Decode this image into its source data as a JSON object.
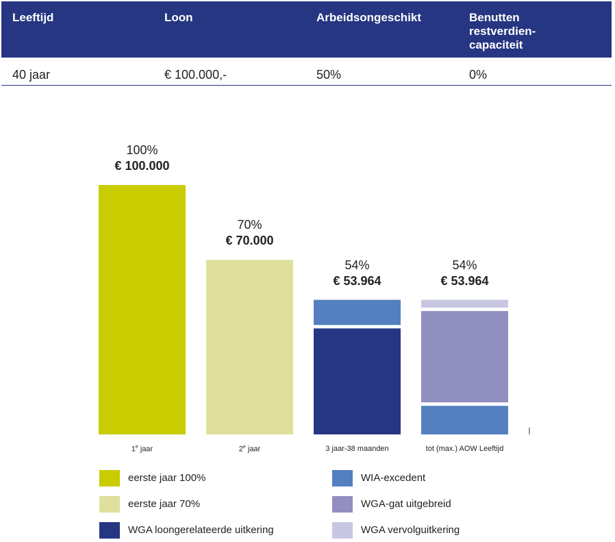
{
  "table": {
    "headers": [
      "Leeftijd",
      "Loon",
      "Arbeidsongeschikt",
      "Benutten restverdien-capaciteit"
    ],
    "row": [
      "40 jaar",
      "€ 100.000,-",
      "50%",
      "0%"
    ]
  },
  "colors": {
    "header_bg": "#263682",
    "eerste_jaar_100": "#c8cc00",
    "eerste_jaar_70": "#dfe09b",
    "wga_loongerelateerd": "#263682",
    "wia_excedent": "#5480c0",
    "wga_gat_uitgebreid": "#918fbf",
    "wga_vervolguitkering": "#c8c7e2"
  },
  "chart_data": {
    "type": "bar",
    "stacked": true,
    "categories": [
      "1e jaar",
      "2e jaar",
      "3 jaar-38 maanden",
      "tot (max.) AOW Leeftijd"
    ],
    "category_labels": [
      {
        "main": "1",
        "sup": "e",
        "rest": " jaar"
      },
      {
        "main": "2",
        "sup": "e",
        "rest": " jaar"
      },
      {
        "main": "3 jaar-38 maanden",
        "sup": "",
        "rest": ""
      },
      {
        "main": "tot (max.) AOW Leeftijd",
        "sup": "",
        "rest": ""
      }
    ],
    "totals": [
      {
        "percent": "100%",
        "amount": "€ 100.000",
        "value": 100000
      },
      {
        "percent": "70%",
        "amount": "€ 70.000",
        "value": 70000
      },
      {
        "percent": "54%",
        "amount": "€ 53.964",
        "value": 53964
      },
      {
        "percent": "54%",
        "amount": "€ 53.964",
        "value": 53964
      }
    ],
    "series": [
      {
        "name": "eerste jaar 100%",
        "color_key": "eerste_jaar_100",
        "values": [
          100000,
          0,
          0,
          0
        ]
      },
      {
        "name": "eerste jaar 70%",
        "color_key": "eerste_jaar_70",
        "values": [
          0,
          70000,
          0,
          0
        ]
      },
      {
        "name": "WGA loongerelateerde uitkering",
        "color_key": "wga_loongerelateerd",
        "values": [
          0,
          0,
          42500,
          0
        ]
      },
      {
        "name": "WIA-excedent",
        "color_key": "wia_excedent",
        "values": [
          0,
          0,
          11464,
          11464
        ]
      },
      {
        "name": "WGA-gat uitgebreid",
        "color_key": "wga_gat_uitgebreid",
        "values": [
          0,
          0,
          0,
          38000
        ]
      },
      {
        "name": "WGA vervolguitkering",
        "color_key": "wga_vervolguitkering",
        "values": [
          0,
          0,
          0,
          4500
        ]
      }
    ],
    "ylim": [
      0,
      100000
    ],
    "grid": false,
    "legend_columns": [
      [
        "eerste jaar 100%",
        "eerste jaar 70%",
        "WGA loongerelateerde uitkering"
      ],
      [
        "WIA-excedent",
        "WGA-gat uitgebreid",
        "WGA vervolguitkering"
      ]
    ]
  }
}
